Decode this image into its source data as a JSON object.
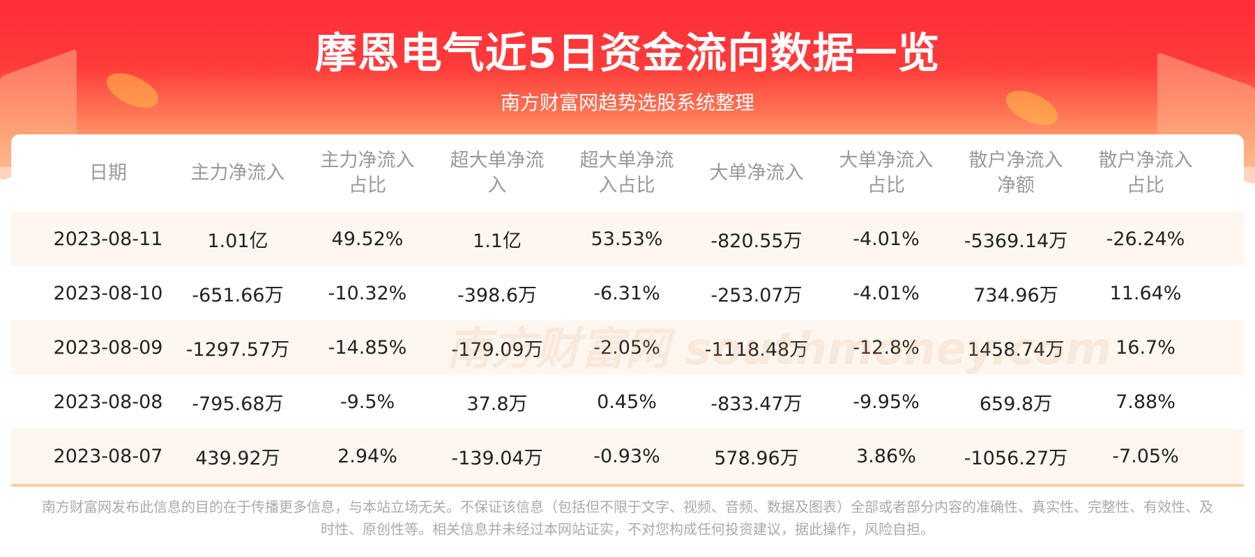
{
  "header": {
    "title": "摩恩电气近5日资金流向数据一览",
    "subtitle": "南方财富网趋势选股系统整理"
  },
  "watermark": {
    "text": "南方财富网 southmoney.com"
  },
  "table": {
    "columns": [
      "日期",
      "主力净流入",
      "主力净流入\n占比",
      "超大单净流\n入",
      "超大单净流\n入占比",
      "大单净流入",
      "大单净流入\n占比",
      "散户净流入\n净额",
      "散户净流入\n占比"
    ],
    "rows": [
      [
        "2023-08-11",
        "1.01亿",
        "49.52%",
        "1.1亿",
        "53.53%",
        "-820.55万",
        "-4.01%",
        "-5369.14万",
        "-26.24%"
      ],
      [
        "2023-08-10",
        "-651.66万",
        "-10.32%",
        "-398.6万",
        "-6.31%",
        "-253.07万",
        "-4.01%",
        "734.96万",
        "11.64%"
      ],
      [
        "2023-08-09",
        "-1297.57万",
        "-14.85%",
        "-179.09万",
        "-2.05%",
        "-1118.48万",
        "-12.8%",
        "1458.74万",
        "16.7%"
      ],
      [
        "2023-08-08",
        "-795.68万",
        "-9.5%",
        "37.8万",
        "0.45%",
        "-833.47万",
        "-9.95%",
        "659.8万",
        "7.88%"
      ],
      [
        "2023-08-07",
        "439.92万",
        "2.94%",
        "-139.04万",
        "-0.93%",
        "578.96万",
        "3.86%",
        "-1056.27万",
        "-7.05%"
      ]
    ]
  },
  "footer": {
    "disclaimer": "南方财富网发布此信息的目的在于传播更多信息，与本站立场无关。不保证该信息（包括但不限于文字、视频、音频、数据及图表）全部或者部分内容的准确性、真实性、完整性、有效性、及时性、原创性等。相关信息并未经过本网站证实，不对您构成任何投资建议，据此操作，风险自担。"
  },
  "colors": {
    "header_red": "#ff2d38",
    "row_alt": "#fef7ef",
    "border": "#ffcc99"
  }
}
